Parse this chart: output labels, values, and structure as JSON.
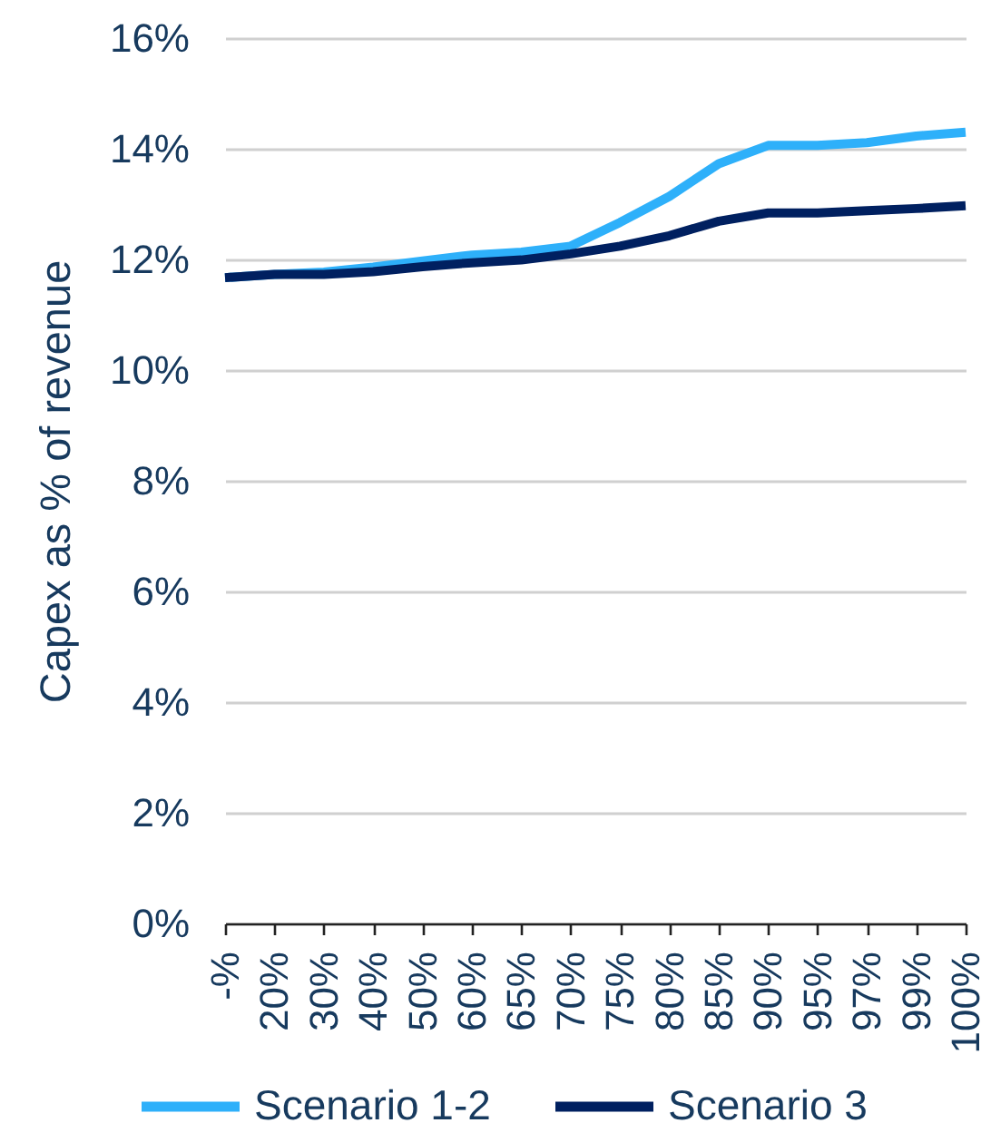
{
  "chart_data": {
    "type": "line",
    "ylabel": "Capex as % of revenue",
    "categories": [
      "-%",
      "20%",
      "30%",
      "40%",
      "50%",
      "60%",
      "65%",
      "70%",
      "75%",
      "80%",
      "85%",
      "90%",
      "95%",
      "97%",
      "99%",
      "100%"
    ],
    "series": [
      {
        "name": "Scenario 1-2",
        "color": "#2eb0fa",
        "values": [
          11.67,
          11.73,
          11.77,
          11.86,
          11.97,
          12.08,
          12.13,
          12.24,
          12.67,
          13.14,
          13.73,
          14.06,
          14.06,
          14.11,
          14.23,
          14.3
        ]
      },
      {
        "name": "Scenario 3",
        "color": "#002060",
        "values": [
          11.67,
          11.73,
          11.73,
          11.78,
          11.87,
          11.94,
          11.99,
          12.1,
          12.24,
          12.43,
          12.69,
          12.84,
          12.84,
          12.88,
          12.92,
          12.97
        ]
      }
    ],
    "ylim": [
      0,
      16
    ],
    "yticks": [
      {
        "value": 0,
        "label": "0%"
      },
      {
        "value": 2,
        "label": "2%"
      },
      {
        "value": 4,
        "label": "4%"
      },
      {
        "value": 6,
        "label": "6%"
      },
      {
        "value": 8,
        "label": "8%"
      },
      {
        "value": 10,
        "label": "10%"
      },
      {
        "value": 12,
        "label": "12%"
      },
      {
        "value": 14,
        "label": "14%"
      },
      {
        "value": 16,
        "label": "16%"
      }
    ],
    "grid": "y",
    "legend": "bottom"
  }
}
